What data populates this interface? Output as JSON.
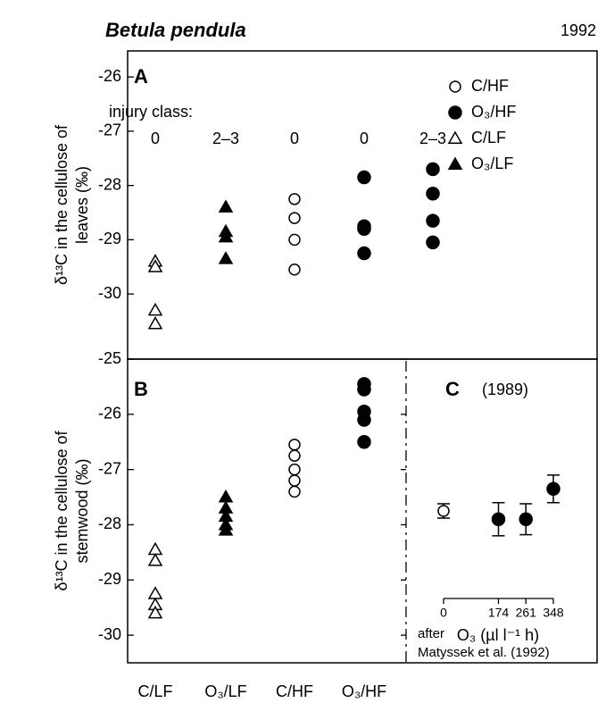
{
  "header": {
    "title": "Betula pendula",
    "year": "1992"
  },
  "chart_data": [
    {
      "type": "scatter",
      "panel": "A",
      "ylabel": [
        "δ¹³C in the cellulose of",
        "leaves (‰)"
      ],
      "ylim": [
        -31.2,
        -25.52
      ],
      "yticks": [
        -26,
        -27,
        -28,
        -29,
        -30
      ],
      "injury_class_label": "injury class:",
      "categories": [
        "0",
        "2–3",
        "0",
        "0",
        "2–3"
      ],
      "series": [
        {
          "name": "C/HF",
          "marker": "open-circle",
          "color": "#000000",
          "values": [
            null,
            null,
            [
              -28.25,
              -28.6,
              -29.0,
              -29.55
            ],
            null,
            null
          ]
        },
        {
          "name": "O₃/HF",
          "marker": "filled-circle",
          "color": "#000000",
          "values": [
            null,
            null,
            null,
            [
              -27.85,
              -28.75,
              -28.8,
              -29.25
            ],
            [
              -27.7,
              -28.15,
              -28.65,
              -29.05
            ]
          ]
        },
        {
          "name": "C/LF",
          "marker": "open-triangle",
          "color": "#000000",
          "values": [
            [
              -29.4,
              -29.5,
              -30.3,
              -30.55
            ],
            null,
            null,
            null,
            null
          ]
        },
        {
          "name": "O₃/LF",
          "marker": "filled-triangle",
          "color": "#000000",
          "values": [
            null,
            [
              -28.4,
              -28.85,
              -28.95,
              -29.35
            ],
            null,
            null,
            null
          ]
        }
      ]
    },
    {
      "type": "scatter",
      "panel": "B",
      "ylabel": [
        "δ¹³C in the cellulose of",
        "stemwood (‰)"
      ],
      "ylim": [
        -30.5,
        -25
      ],
      "yticks": [
        -25,
        -26,
        -27,
        -28,
        -29,
        -30
      ],
      "categories": [
        "C/LF",
        "O₃/LF",
        "C/HF",
        "O₃/HF"
      ],
      "series": [
        {
          "marker": "open-triangle",
          "color": "#000000",
          "values": [
            [
              -28.45,
              -28.65,
              -29.25,
              -29.45,
              -29.6
            ],
            null,
            null,
            null
          ]
        },
        {
          "marker": "filled-triangle",
          "color": "#000000",
          "values": [
            null,
            [
              -27.5,
              -27.7,
              -27.85,
              -28.0,
              -28.1
            ],
            null,
            null
          ]
        },
        {
          "marker": "open-circle",
          "color": "#000000",
          "values": [
            null,
            null,
            [
              -26.55,
              -26.75,
              -27.0,
              -27.2,
              -27.4
            ],
            null
          ]
        },
        {
          "marker": "filled-circle",
          "color": "#000000",
          "values": [
            null,
            null,
            null,
            [
              -25.45,
              -25.55,
              -25.95,
              -26.1,
              -26.5
            ]
          ]
        }
      ]
    },
    {
      "type": "errorbar",
      "panel": "C",
      "subtitle": "(1989)",
      "xlabel": "O₃ (µl l⁻¹ h)",
      "xlim": [
        0,
        348
      ],
      "xticks": [
        0,
        174,
        261,
        348
      ],
      "ylim": [
        -30.5,
        -25
      ],
      "x": [
        0,
        174,
        261,
        348
      ],
      "values": [
        -27.75,
        -27.9,
        -27.9,
        -27.35
      ],
      "errors": [
        0.13,
        0.3,
        0.28,
        0.25
      ],
      "markers": [
        "open-circle",
        "filled-circle",
        "filled-circle",
        "filled-circle"
      ],
      "color": "#000000",
      "annotation": [
        "after",
        "Matyssek et al. (1992)"
      ]
    }
  ]
}
